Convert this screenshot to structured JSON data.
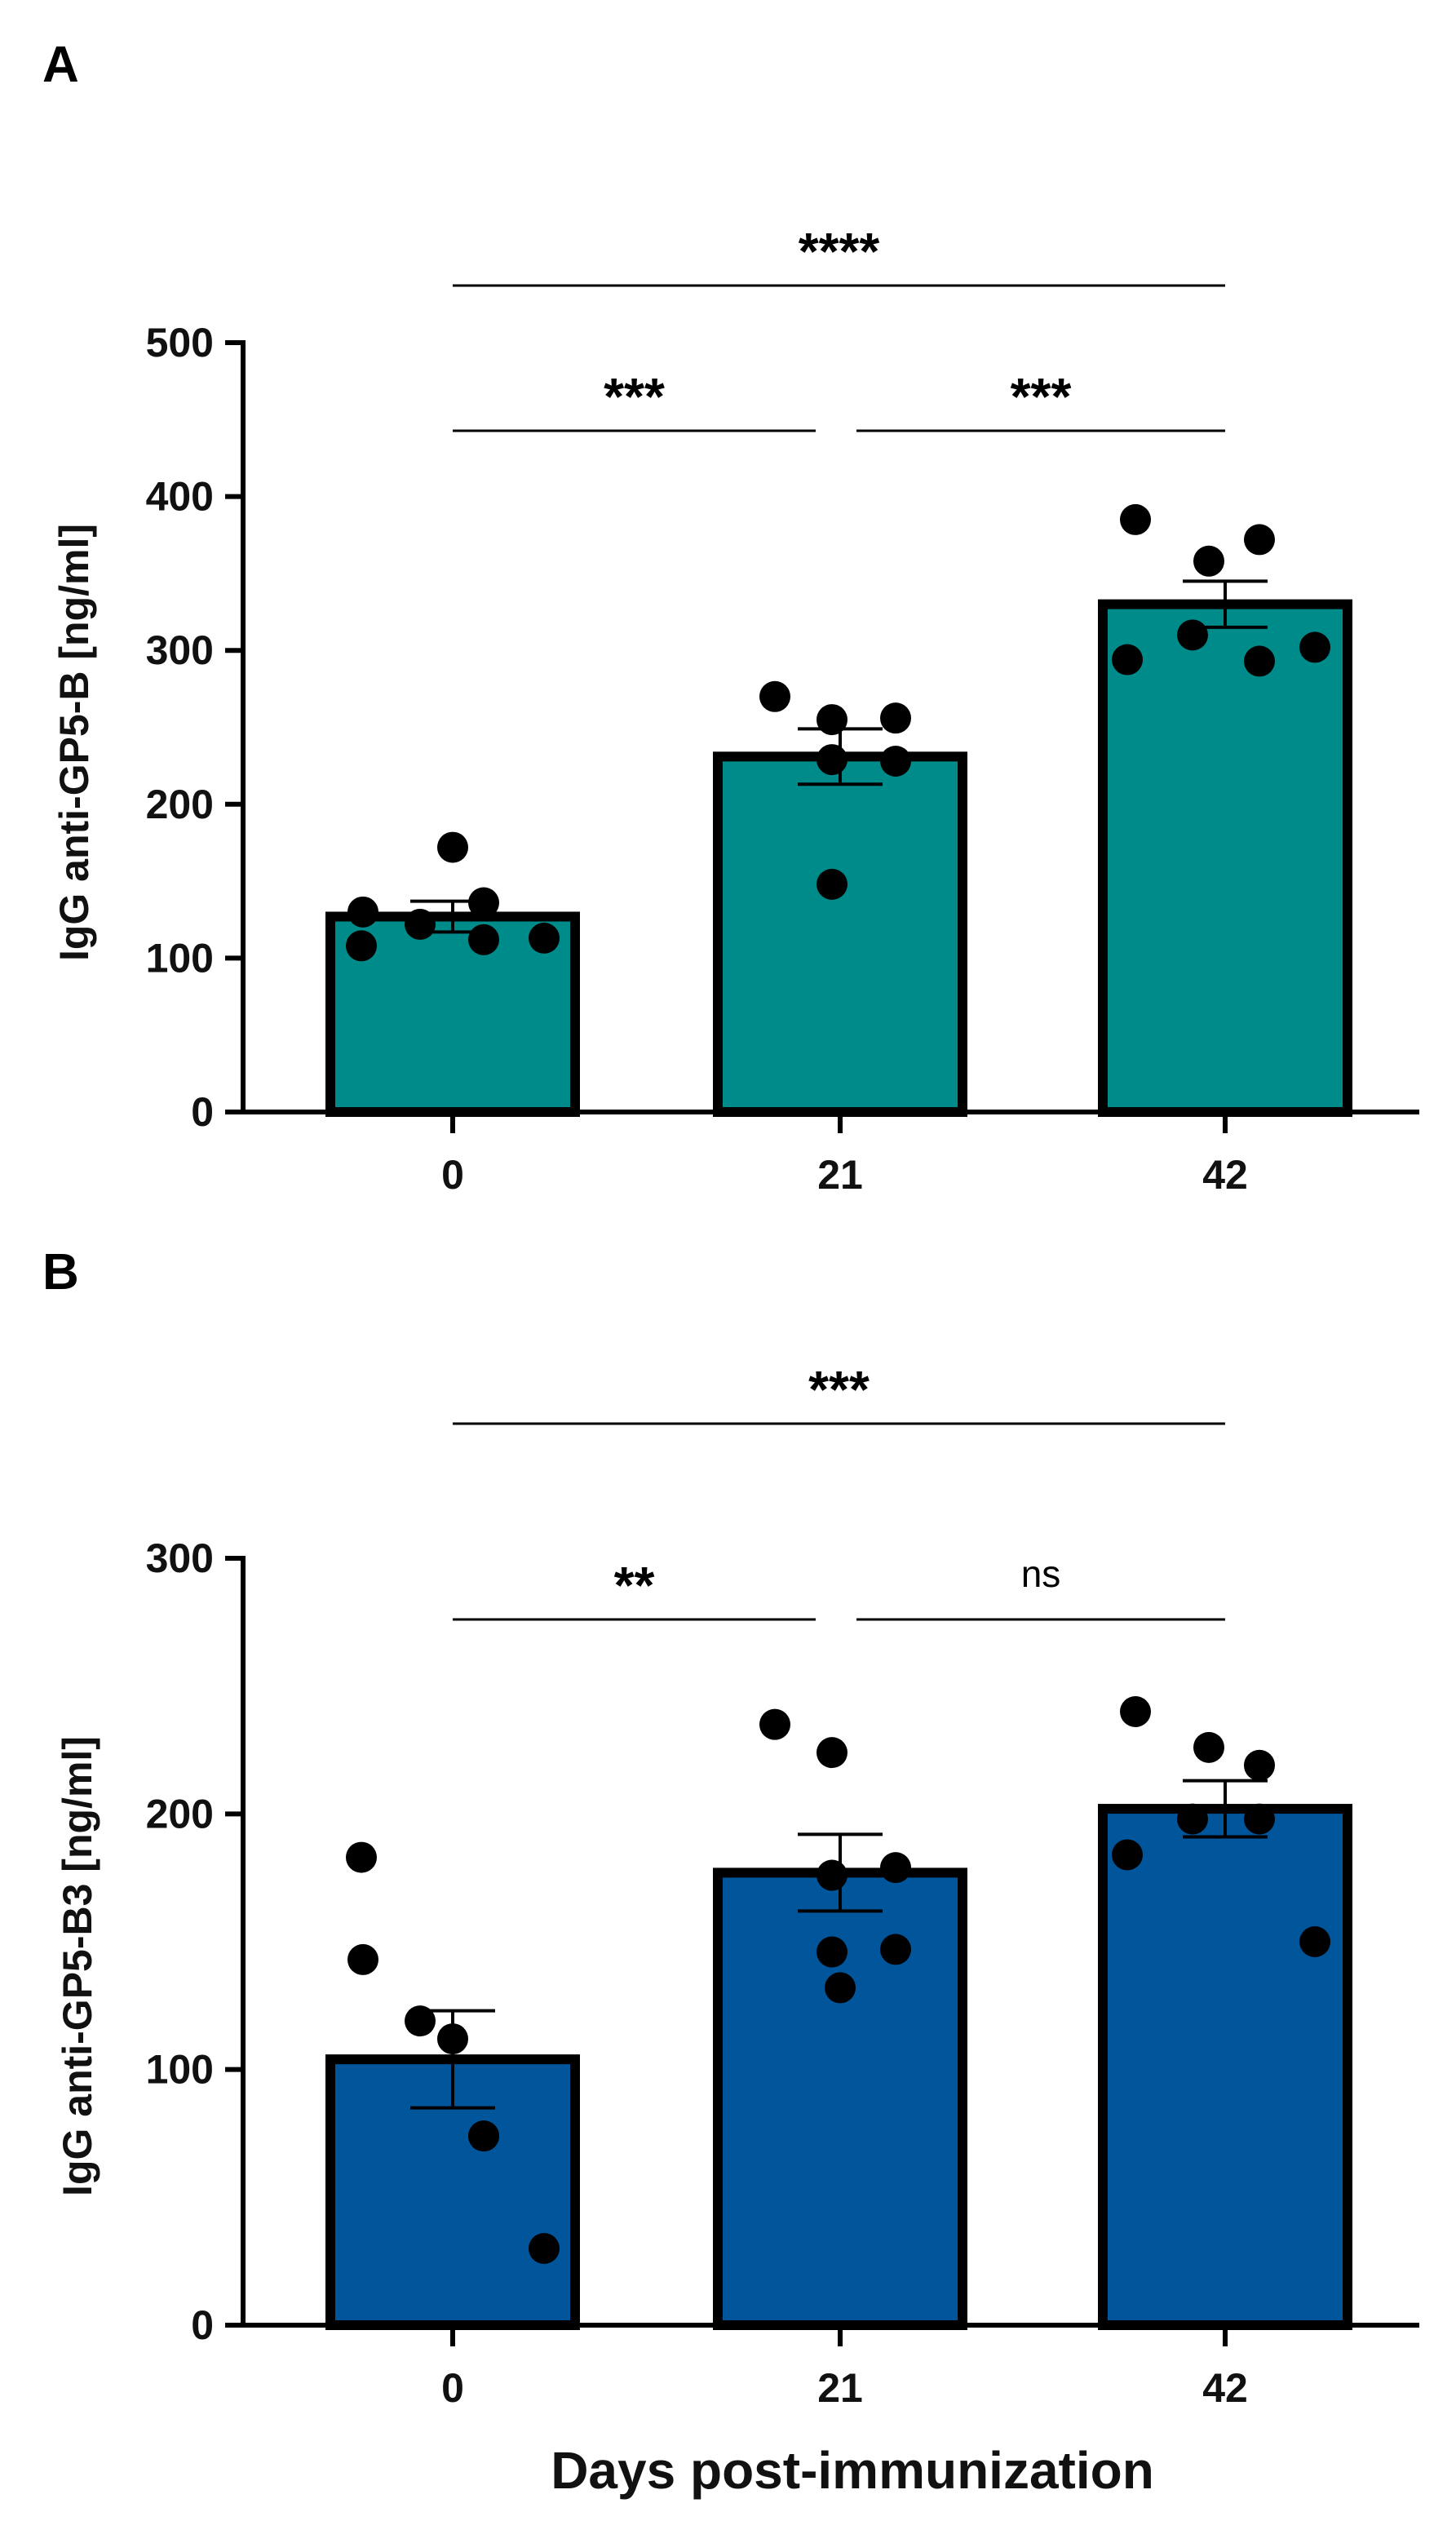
{
  "chart_data": [
    {
      "panel": "A",
      "type": "bar",
      "categories": [
        "0",
        "21",
        "42"
      ],
      "ylabel": "IgG anti-GP5-B [ng/ml]",
      "xlabel": "",
      "ylim": [
        0,
        500
      ],
      "yticks": [
        0,
        100,
        200,
        300,
        400,
        500
      ],
      "bar_color": "#008B8B",
      "values": [
        127,
        231,
        330
      ],
      "sem": [
        10,
        18,
        15
      ],
      "points": [
        [
          108,
          130,
          122,
          172,
          136,
          112,
          113
        ],
        [
          270,
          255,
          256,
          229,
          228,
          148
        ],
        [
          385,
          358,
          372,
          310,
          293,
          294,
          302
        ]
      ],
      "comparisons": [
        {
          "from": 0,
          "to": 2,
          "label": "****",
          "level": 2
        },
        {
          "from": 0,
          "to": 1,
          "label": "***",
          "level": 1
        },
        {
          "from": 1,
          "to": 2,
          "label": "***",
          "level": 1
        }
      ]
    },
    {
      "panel": "B",
      "type": "bar",
      "categories": [
        "0",
        "21",
        "42"
      ],
      "ylabel": "IgG anti-GP5-B3 [ng/ml]",
      "xlabel": "Days post-immunization",
      "ylim": [
        0,
        300
      ],
      "yticks": [
        0,
        100,
        200,
        300
      ],
      "bar_color": "#00559B",
      "values": [
        104,
        177,
        202
      ],
      "sem": [
        19,
        15,
        11
      ],
      "points": [
        [
          183,
          143,
          119,
          112,
          74,
          74,
          30
        ],
        [
          235,
          224,
          179,
          176,
          147,
          146,
          132
        ],
        [
          240,
          226,
          219,
          198,
          198,
          184,
          150
        ]
      ],
      "comparisons": [
        {
          "from": 0,
          "to": 2,
          "label": "***",
          "level": 2
        },
        {
          "from": 0,
          "to": 1,
          "label": "**",
          "level": 1
        },
        {
          "from": 1,
          "to": 2,
          "label": "ns",
          "level": 1
        }
      ]
    }
  ]
}
